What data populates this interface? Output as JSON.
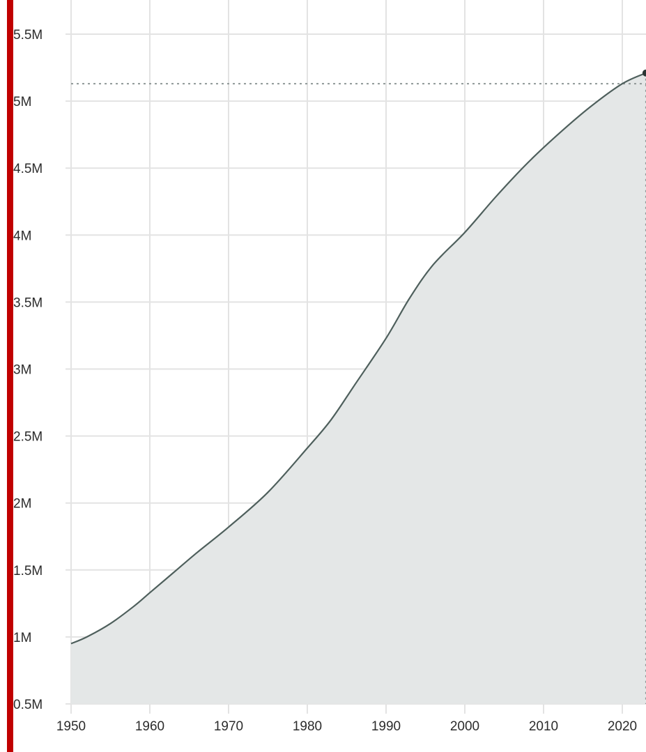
{
  "colors": {
    "accent_bar": "#c00000",
    "line": "#4e5f5c",
    "area_fill": "#e4e7e7",
    "grid": "#e3e3e3",
    "reference_line": "#8f9796",
    "end_marker": "#2b3634"
  },
  "chart_data": {
    "type": "area",
    "title": "",
    "xlabel": "",
    "ylabel": "",
    "x_ticks": [
      "1950",
      "1960",
      "1970",
      "1980",
      "1990",
      "2000",
      "2010",
      "2020"
    ],
    "y_ticks": [
      "0.5M",
      "1M",
      "1.5M",
      "2M",
      "2.5M",
      "3M",
      "3.5M",
      "4M",
      "4.5M",
      "5M",
      "5.5M"
    ],
    "xlim": [
      1950,
      2023
    ],
    "ylim": [
      0.5,
      5.5
    ],
    "y_unit": "millions",
    "grid": true,
    "reference_line": {
      "y": 5.13,
      "style": "dotted"
    },
    "end_marker": {
      "x": 2023,
      "y": 5.21
    },
    "series": [
      {
        "x": [
          1950,
          1952,
          1955,
          1958,
          1960,
          1963,
          1966,
          1970,
          1975,
          1980,
          1983,
          1986,
          1990,
          1993,
          1996,
          2000,
          2004,
          2008,
          2012,
          2016,
          2020,
          2023
        ],
        "values": [
          0.95,
          1.0,
          1.1,
          1.23,
          1.33,
          1.48,
          1.63,
          1.82,
          2.08,
          2.41,
          2.62,
          2.88,
          3.23,
          3.53,
          3.78,
          4.02,
          4.29,
          4.54,
          4.76,
          4.96,
          5.13,
          5.21
        ]
      }
    ]
  }
}
